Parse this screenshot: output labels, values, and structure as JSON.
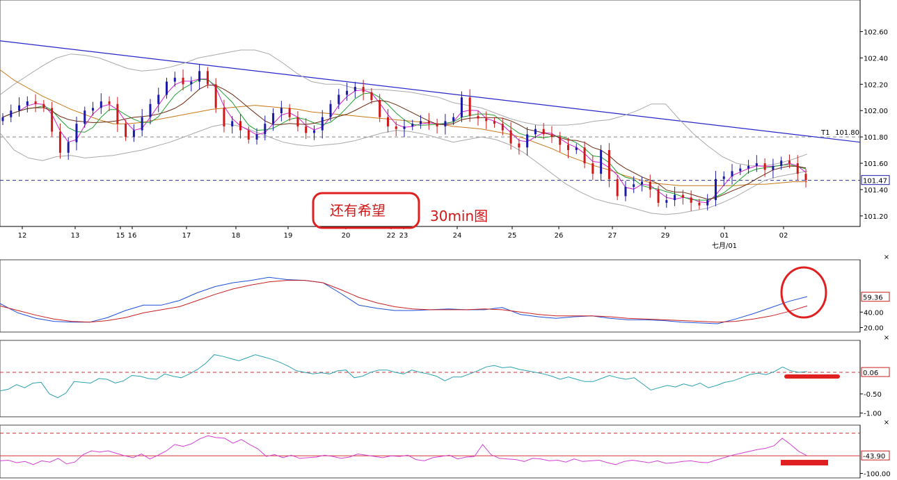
{
  "colors": {
    "background": "#ffffff",
    "axis": "#000000",
    "panel_border": "#444444",
    "trendline": "#2525c8",
    "up_candle": "#1a1aa8",
    "down_candle": "#d01818",
    "bollinger": "#a8a8a8",
    "ma_fast": "#d020d0",
    "ma_mid": "#20a030",
    "ma_slow": "#6b2a10",
    "ma_long": "#c87814",
    "k_line": "#1e4fd8",
    "d_line": "#c81e1e",
    "cyan_osc": "#2aa0b0",
    "magenta_osc": "#d040d0",
    "annotation": "#e02020",
    "dashed_ref": "#d03030",
    "close_marker_text": "#1a1aa8"
  },
  "annotations": {
    "box_text": "还有希望",
    "label_text": "30min图"
  },
  "chart_data": [
    {
      "type": "candlestick",
      "timeframe_note": "30min图",
      "x_tick_labels": [
        "12",
        "13",
        "15",
        "16",
        "17",
        "18",
        "19",
        "20",
        "22",
        "23",
        "24",
        "25",
        "26",
        "27",
        "29",
        "01",
        "02"
      ],
      "x_sub_label": "七月/01",
      "y_tick_labels": [
        "102.60",
        "102.40",
        "102.20",
        "102.00",
        "101.80",
        "101.60",
        "101.40",
        "101.20"
      ],
      "ylim": [
        101.12,
        102.84
      ],
      "last_price_label": "101.47",
      "last_price": 101.47,
      "horizontal_level": {
        "label": "T1",
        "value_label": "101.80",
        "value": 101.8
      },
      "trendline": {
        "start": 102.53,
        "end": 101.76
      },
      "close": [
        101.95,
        102.0,
        102.04,
        102.07,
        102.05,
        102.02,
        101.84,
        101.68,
        101.76,
        101.9,
        102.0,
        102.02,
        102.07,
        102.05,
        101.9,
        101.8,
        101.85,
        101.95,
        102.05,
        102.12,
        102.22,
        102.25,
        102.2,
        102.22,
        102.3,
        102.2,
        102.02,
        101.88,
        101.92,
        101.85,
        101.78,
        101.82,
        101.9,
        101.98,
        102.02,
        101.95,
        101.88,
        101.83,
        101.85,
        101.95,
        102.05,
        102.12,
        102.15,
        102.18,
        102.14,
        102.08,
        101.95,
        101.88,
        101.86,
        101.88,
        101.9,
        101.92,
        101.9,
        101.88,
        101.92,
        101.95,
        102.1,
        101.96,
        101.94,
        101.92,
        101.9,
        101.85,
        101.75,
        101.72,
        101.82,
        101.86,
        101.82,
        101.8,
        101.74,
        101.7,
        101.72,
        101.6,
        101.52,
        101.7,
        101.48,
        101.35,
        101.42,
        101.44,
        101.46,
        101.4,
        101.3,
        101.32,
        101.36,
        101.34,
        101.3,
        101.28,
        101.32,
        101.48,
        101.5,
        101.54,
        101.56,
        101.58,
        101.6,
        101.55,
        101.58,
        101.62,
        101.6,
        101.52,
        101.47
      ],
      "bollinger_upper": [
        102.12,
        102.2,
        102.27,
        102.34,
        102.4,
        102.43,
        102.42,
        102.4,
        102.36,
        102.32,
        102.3,
        102.31,
        102.33,
        102.36,
        102.4,
        102.42,
        102.44,
        102.46,
        102.46,
        102.43,
        102.36,
        102.28,
        102.22,
        102.2,
        102.2,
        102.17,
        102.16,
        102.16,
        102.15,
        102.14,
        102.12,
        102.1,
        102.06,
        102.04,
        102.02,
        101.98,
        101.94,
        101.91,
        101.89,
        101.89,
        101.89,
        101.9,
        101.92,
        101.93,
        101.96,
        102.0,
        102.05,
        102.05,
        101.93,
        101.82,
        101.73,
        101.65,
        101.6,
        101.58,
        101.58,
        101.6,
        101.63,
        101.67
      ],
      "bollinger_lower": [
        101.83,
        101.7,
        101.64,
        101.62,
        101.65,
        101.66,
        101.64,
        101.65,
        101.66,
        101.68,
        101.7,
        101.73,
        101.76,
        101.8,
        101.84,
        101.88,
        101.9,
        101.88,
        101.84,
        101.8,
        101.76,
        101.74,
        101.73,
        101.74,
        101.75,
        101.77,
        101.8,
        101.83,
        101.85,
        101.84,
        101.82,
        101.79,
        101.76,
        101.78,
        101.8,
        101.78,
        101.74,
        101.68,
        101.6,
        101.52,
        101.44,
        101.38,
        101.33,
        101.3,
        101.28,
        101.25,
        101.22,
        101.21,
        101.22,
        101.24,
        101.26,
        101.3,
        101.35,
        101.41,
        101.47,
        101.5,
        101.52,
        101.54
      ],
      "moving_average_long": [
        102.31,
        102.23,
        102.17,
        102.11,
        102.06,
        102.01,
        101.97,
        101.93,
        101.9,
        101.9,
        101.91,
        101.93,
        101.95,
        101.97,
        101.99,
        102.01,
        102.02,
        102.03,
        102.04,
        102.03,
        102.02,
        102.01,
        101.99,
        101.98,
        101.97,
        101.96,
        101.95,
        101.94,
        101.93,
        101.92,
        101.91,
        101.9,
        101.88,
        101.87,
        101.86,
        101.84,
        101.82,
        101.79,
        101.75,
        101.71,
        101.66,
        101.62,
        101.58,
        101.55,
        101.51,
        101.48,
        101.45,
        101.44,
        101.43,
        101.43,
        101.43,
        101.43,
        101.43,
        101.44,
        101.44,
        101.45,
        101.46,
        101.46
      ]
    },
    {
      "type": "line",
      "title": "",
      "y_tick_labels": [
        "40.00",
        "20.00"
      ],
      "ylim": [
        16,
        104
      ],
      "last_value_label": "59.36",
      "series": [
        {
          "values": [
            51,
            39,
            32,
            28,
            27,
            27,
            33,
            42,
            49,
            49,
            55,
            65,
            73,
            78,
            81,
            85,
            82,
            81,
            78,
            64,
            49,
            45,
            42,
            42,
            43,
            44,
            43,
            43,
            46,
            37,
            34,
            32,
            34,
            35,
            32,
            30,
            30,
            29,
            27,
            26,
            25,
            31,
            38,
            46,
            54,
            60
          ]
        },
        {
          "values": [
            48,
            42,
            36,
            31,
            28,
            27,
            29,
            33,
            39,
            43,
            47,
            55,
            63,
            70,
            75,
            79,
            81,
            81,
            78,
            69,
            59,
            52,
            47,
            44,
            43,
            43,
            43,
            44,
            43,
            40,
            37,
            35,
            35,
            35,
            34,
            32,
            31,
            30,
            29,
            28,
            27,
            28,
            31,
            35,
            41,
            48
          ]
        }
      ]
    },
    {
      "type": "line",
      "title": "",
      "y_tick_labels": [
        "-0.50",
        "-1.00"
      ],
      "ylim": [
        -1.06,
        0.82
      ],
      "last_value_label": "0.06",
      "reference_lines": [
        0.06
      ],
      "series": [
        {
          "values": [
            -0.42,
            -0.38,
            -0.26,
            -0.34,
            -0.22,
            -0.2,
            -0.5,
            -0.6,
            -0.48,
            -0.18,
            -0.2,
            -0.22,
            -0.1,
            -0.12,
            -0.22,
            -0.16,
            -0.02,
            -0.04,
            -0.1,
            -0.12,
            0.02,
            -0.04,
            -0.08,
            0.02,
            0.14,
            0.3,
            0.52,
            0.48,
            0.42,
            0.36,
            0.44,
            0.52,
            0.46,
            0.4,
            0.32,
            0.22,
            0.1,
            0.06,
            0.02,
            0.05,
            0.02,
            0.1,
            0.12,
            -0.08,
            -0.04,
            0.06,
            0.12,
            0.12,
            0.06,
            0.02,
            0.12,
            0.06,
            0.02,
            -0.04,
            -0.16,
            -0.06,
            -0.06,
            0.02,
            0.1,
            0.2,
            0.24,
            0.18,
            0.2,
            0.14,
            0.1,
            0.06,
            0.02,
            -0.04,
            -0.12,
            -0.06,
            -0.12,
            -0.18,
            -0.18,
            -0.1,
            -0.02,
            -0.08,
            -0.12,
            -0.08,
            -0.24,
            -0.4,
            -0.34,
            -0.28,
            -0.32,
            -0.24,
            -0.3,
            -0.22,
            -0.34,
            -0.28,
            -0.2,
            -0.16,
            -0.08,
            0.0,
            0.04,
            0.0,
            0.08,
            0.2,
            0.1,
            0.06,
            0.08
          ]
        }
      ]
    },
    {
      "type": "line",
      "title": "",
      "y_tick_labels": [
        "-100.00"
      ],
      "ylim": [
        -110,
        45
      ],
      "last_value_label": "-43.90",
      "reference_lines": [
        28,
        -43.9
      ],
      "series": [
        {
          "values": [
            -60,
            -58,
            -66,
            -62,
            -72,
            -60,
            -64,
            -52,
            -70,
            -64,
            -40,
            -28,
            -32,
            -28,
            -36,
            -44,
            -50,
            -38,
            -54,
            -42,
            -28,
            -8,
            -14,
            -6,
            10,
            20,
            14,
            12,
            -4,
            8,
            -8,
            -22,
            -46,
            -40,
            -50,
            -42,
            -52,
            -50,
            -48,
            -42,
            -46,
            -52,
            -48,
            -38,
            -42,
            -46,
            -50,
            -44,
            -46,
            -42,
            -56,
            -60,
            -50,
            -46,
            -42,
            -54,
            -48,
            -46,
            -8,
            -40,
            -52,
            -54,
            -56,
            -62,
            -52,
            -54,
            -60,
            -58,
            -64,
            -54,
            -62,
            -60,
            -58,
            -66,
            -72,
            -62,
            -58,
            -62,
            -66,
            -60,
            -68,
            -66,
            -62,
            -60,
            -64,
            -66,
            -58,
            -50,
            -42,
            -36,
            -30,
            -24,
            -20,
            -12,
            12,
            -8,
            -30,
            -44
          ]
        }
      ]
    }
  ]
}
